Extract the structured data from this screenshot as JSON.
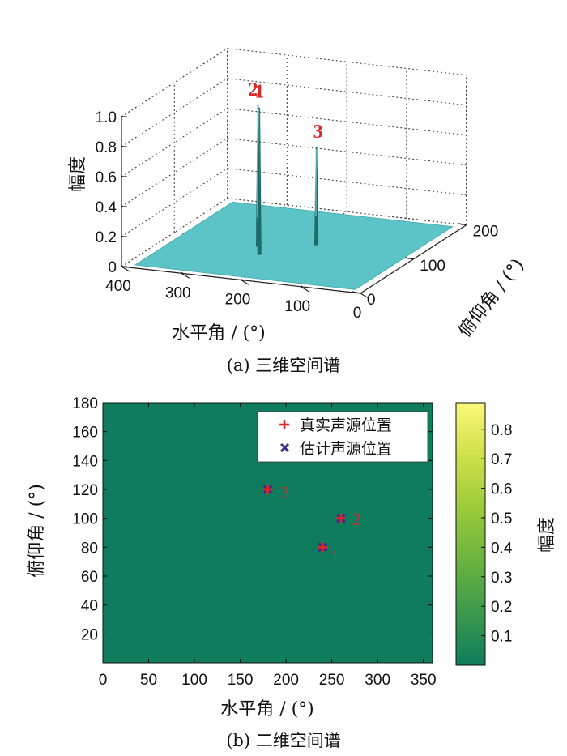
{
  "chart_data": [
    {
      "type": "surface3d",
      "caption": "(a) 三维空间谱",
      "xlabel": "水平角 / (°)",
      "ylabel": "俯仰角 / (°)",
      "zlabel": "幅度",
      "xlim": [
        0,
        400
      ],
      "ylim": [
        0,
        200
      ],
      "zlim": [
        0,
        1
      ],
      "xticks": [
        "400",
        "300",
        "200",
        "100",
        "0"
      ],
      "yticks": [
        "0",
        "100",
        "200"
      ],
      "zticks": [
        "0",
        "0.2",
        "0.4",
        "0.6",
        "0.8",
        "1.0"
      ],
      "grid": true,
      "surface_color": "#5cc4c6",
      "peak_color": "#1f6b6b",
      "label_color": "#d42a2a",
      "peaks": [
        {
          "label": "1",
          "x": 240,
          "y": 80,
          "z": 0.95
        },
        {
          "label": "2",
          "x": 260,
          "y": 100,
          "z": 0.91
        },
        {
          "label": "3",
          "x": 180,
          "y": 120,
          "z": 0.62
        }
      ]
    },
    {
      "type": "heatmap",
      "caption": "(b) 二维空间谱",
      "xlabel": "水平角 / (°)",
      "ylabel": "俯仰角 / (°)",
      "xlim": [
        0,
        360
      ],
      "ylim": [
        0,
        180
      ],
      "xticks": [
        "0",
        "50",
        "100",
        "150",
        "200",
        "250",
        "300",
        "350"
      ],
      "yticks": [
        "20",
        "40",
        "60",
        "80",
        "100",
        "120",
        "140",
        "160",
        "180"
      ],
      "background_color": "#0f7d5d",
      "colorbar": {
        "label": "幅度",
        "ticks": [
          "0.1",
          "0.2",
          "0.3",
          "0.4",
          "0.5",
          "0.6",
          "0.7",
          "0.8"
        ],
        "range": [
          0,
          0.89
        ],
        "colors": [
          "#0f7d5d",
          "#3c9a4c",
          "#6bb33f",
          "#9ccb3a",
          "#cfe14a",
          "#fbf87a"
        ]
      },
      "legend": {
        "position": "top-right",
        "entries": [
          {
            "label": "真实声源位置",
            "marker": "+",
            "color": "#e02424"
          },
          {
            "label": "估计声源位置",
            "marker": "x",
            "color": "#3a2f8f"
          }
        ]
      },
      "true_positions": [
        {
          "label": "1",
          "x": 240,
          "y": 80
        },
        {
          "label": "2",
          "x": 260,
          "y": 100
        },
        {
          "label": "3",
          "x": 180,
          "y": 120
        }
      ],
      "estimated_positions": [
        {
          "x": 240,
          "y": 80
        },
        {
          "x": 260,
          "y": 100
        },
        {
          "x": 180,
          "y": 120
        }
      ]
    }
  ]
}
